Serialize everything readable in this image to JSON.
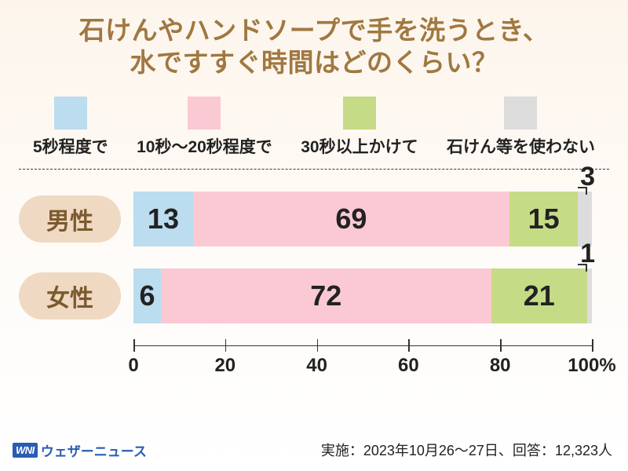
{
  "title_line1": "石けんやハンドソープで手を洗うとき、",
  "title_line2": "水ですすぐ時間はどのくらい？",
  "colors": {
    "seg1": "#bcdcef",
    "seg2": "#fbc9d3",
    "seg3": "#c6db86",
    "seg4": "#dcdcdc",
    "title": "#a07840",
    "row_label_bg": "#f0d9c2",
    "row_label_text": "#7a5a2e"
  },
  "legend": [
    {
      "label": "5秒程度で",
      "color_key": "seg1"
    },
    {
      "label": "10秒～20秒程度で",
      "color_key": "seg2"
    },
    {
      "label": "30秒以上かけて",
      "color_key": "seg3"
    },
    {
      "label": "石けん等を使わない",
      "color_key": "seg4"
    }
  ],
  "rows": [
    {
      "label": "男性",
      "segments": [
        {
          "value": 13,
          "color_key": "seg1",
          "show_inline": true
        },
        {
          "value": 69,
          "color_key": "seg2",
          "show_inline": true
        },
        {
          "value": 15,
          "color_key": "seg3",
          "show_inline": true
        },
        {
          "value": 3,
          "color_key": "seg4",
          "show_inline": false,
          "callout": true
        }
      ]
    },
    {
      "label": "女性",
      "segments": [
        {
          "value": 6,
          "color_key": "seg1",
          "show_inline": true
        },
        {
          "value": 72,
          "color_key": "seg2",
          "show_inline": true
        },
        {
          "value": 21,
          "color_key": "seg3",
          "show_inline": true
        },
        {
          "value": 1,
          "color_key": "seg4",
          "show_inline": false,
          "callout": true
        }
      ]
    }
  ],
  "axis": {
    "min": 0,
    "max": 100,
    "ticks": [
      0,
      20,
      40,
      60,
      80,
      100
    ],
    "suffix_last": "%"
  },
  "brand": {
    "badge": "WNI",
    "text": "ウェザーニュース"
  },
  "meta": "実施：2023年10月26～27日、回答：12,323人"
}
